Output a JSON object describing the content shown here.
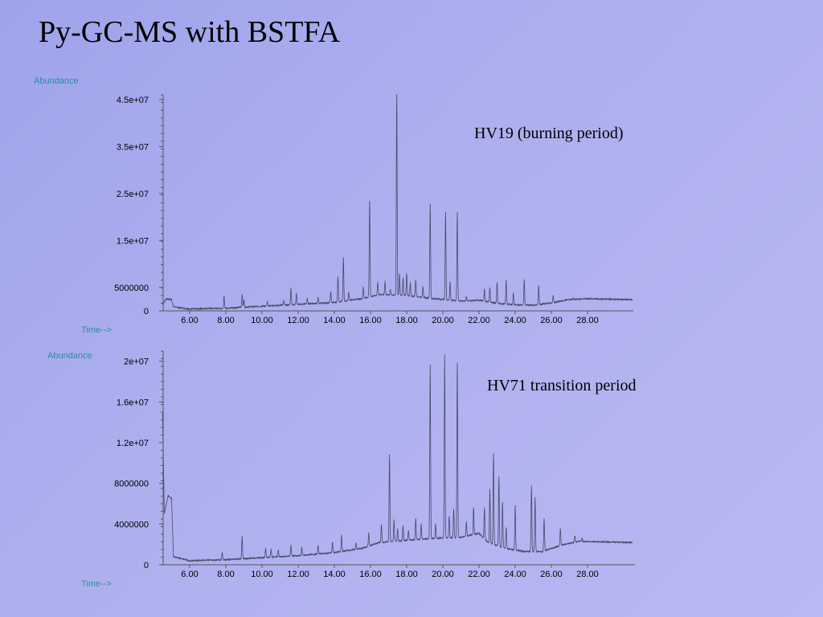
{
  "slide": {
    "title": "Py-GC-MS with BSTFA"
  },
  "chart_data": [
    {
      "type": "line",
      "annotation": "HV19 (burning period)",
      "ylabel": "Abundance",
      "xlabel": "Time-->",
      "xlim": [
        4.5,
        30.5
      ],
      "ylim": [
        0,
        46000000
      ],
      "x_ticks": [
        "6.00",
        "8.00",
        "10.00",
        "12.00",
        "14.00",
        "16.00",
        "18.00",
        "20.00",
        "22.00",
        "24.00",
        "26.00",
        "28.00"
      ],
      "y_ticks": [
        {
          "value": 0,
          "label": "0"
        },
        {
          "value": 5000000,
          "label": "5000000"
        },
        {
          "value": 15000000,
          "label": "1.5e+07"
        },
        {
          "value": 25000000,
          "label": "2.5e+07"
        },
        {
          "value": 35000000,
          "label": "3.5e+07"
        },
        {
          "value": 45000000,
          "label": "4.5e+07"
        }
      ],
      "baseline": [
        [
          4.5,
          1300000
        ],
        [
          4.7,
          2600000
        ],
        [
          5.0,
          2400000
        ],
        [
          5.1,
          900000
        ],
        [
          6.0,
          400000
        ],
        [
          8.0,
          600000
        ],
        [
          10.0,
          1000000
        ],
        [
          12.0,
          1400000
        ],
        [
          14.0,
          1800000
        ],
        [
          15.5,
          2600000
        ],
        [
          16.5,
          3500000
        ],
        [
          18.0,
          3300000
        ],
        [
          19.5,
          2600000
        ],
        [
          21.0,
          2100000
        ],
        [
          22.0,
          2300000
        ],
        [
          23.0,
          1600000
        ],
        [
          24.0,
          1300000
        ],
        [
          25.0,
          1200000
        ],
        [
          26.0,
          1700000
        ],
        [
          27.0,
          2400000
        ],
        [
          28.0,
          2600000
        ],
        [
          30.4,
          2400000
        ]
      ],
      "peaks": [
        [
          7.9,
          3000000
        ],
        [
          8.9,
          3500000
        ],
        [
          9.0,
          2300000
        ],
        [
          10.3,
          2000000
        ],
        [
          11.2,
          2200000
        ],
        [
          11.6,
          4800000
        ],
        [
          11.9,
          3700000
        ],
        [
          12.5,
          2600000
        ],
        [
          13.1,
          2800000
        ],
        [
          13.8,
          4000000
        ],
        [
          14.2,
          7200000
        ],
        [
          14.5,
          11200000
        ],
        [
          14.8,
          3900000
        ],
        [
          15.6,
          5100000
        ],
        [
          15.95,
          23300000
        ],
        [
          16.4,
          6000000
        ],
        [
          16.8,
          6300000
        ],
        [
          17.1,
          4500000
        ],
        [
          17.45,
          46000000
        ],
        [
          17.6,
          7800000
        ],
        [
          17.8,
          7000000
        ],
        [
          18.0,
          7900000
        ],
        [
          18.2,
          6000000
        ],
        [
          18.5,
          6500000
        ],
        [
          18.9,
          5100000
        ],
        [
          19.3,
          22700000
        ],
        [
          20.15,
          20900000
        ],
        [
          20.4,
          6100000
        ],
        [
          20.8,
          20900000
        ],
        [
          21.3,
          3000000
        ],
        [
          22.3,
          4600000
        ],
        [
          22.6,
          4900000
        ],
        [
          23.0,
          6000000
        ],
        [
          23.5,
          6500000
        ],
        [
          23.9,
          3700000
        ],
        [
          24.5,
          6600000
        ],
        [
          25.3,
          5300000
        ],
        [
          26.1,
          3200000
        ],
        [
          26.8,
          2400000
        ],
        [
          27.2,
          2700000
        ]
      ]
    },
    {
      "type": "line",
      "annotation": "HV71 transition period",
      "ylabel": "Abundance",
      "xlabel": "Time-->",
      "xlim": [
        4.5,
        30.5
      ],
      "ylim": [
        0,
        21000000
      ],
      "x_ticks": [
        "6.00",
        "8.00",
        "10.00",
        "12.00",
        "14.00",
        "16.00",
        "18.00",
        "20.00",
        "22.00",
        "24.00",
        "26.00",
        "28.00"
      ],
      "y_ticks": [
        {
          "value": 0,
          "label": "0"
        },
        {
          "value": 4000000,
          "label": "4000000"
        },
        {
          "value": 8000000,
          "label": "8000000"
        },
        {
          "value": 12000000,
          "label": "1.2e+07"
        },
        {
          "value": 16000000,
          "label": "1.6e+07"
        },
        {
          "value": 20000000,
          "label": "2e+07"
        }
      ],
      "baseline": [
        [
          4.5,
          15000000
        ],
        [
          4.6,
          5000000
        ],
        [
          4.8,
          6800000
        ],
        [
          5.0,
          6500000
        ],
        [
          5.1,
          800000
        ],
        [
          6.0,
          400000
        ],
        [
          8.0,
          500000
        ],
        [
          10.0,
          700000
        ],
        [
          12.0,
          900000
        ],
        [
          14.0,
          1200000
        ],
        [
          15.5,
          1600000
        ],
        [
          16.5,
          2200000
        ],
        [
          18.0,
          2400000
        ],
        [
          19.5,
          2600000
        ],
        [
          21.0,
          2700000
        ],
        [
          22.0,
          3100000
        ],
        [
          22.5,
          2200000
        ],
        [
          23.5,
          1600000
        ],
        [
          24.5,
          1300000
        ],
        [
          25.5,
          1300000
        ],
        [
          26.5,
          1900000
        ],
        [
          27.5,
          2300000
        ],
        [
          30.4,
          2200000
        ]
      ],
      "peaks": [
        [
          7.8,
          1200000
        ],
        [
          8.9,
          2800000
        ],
        [
          10.2,
          1600000
        ],
        [
          10.5,
          1500000
        ],
        [
          10.9,
          1400000
        ],
        [
          11.6,
          1900000
        ],
        [
          12.2,
          1700000
        ],
        [
          13.1,
          1900000
        ],
        [
          13.9,
          2200000
        ],
        [
          14.4,
          2900000
        ],
        [
          15.2,
          2100000
        ],
        [
          15.9,
          3100000
        ],
        [
          16.6,
          3900000
        ],
        [
          17.05,
          10800000
        ],
        [
          17.3,
          4400000
        ],
        [
          17.5,
          3500000
        ],
        [
          17.8,
          3800000
        ],
        [
          18.1,
          3300000
        ],
        [
          18.5,
          4500000
        ],
        [
          18.8,
          4000000
        ],
        [
          19.3,
          19600000
        ],
        [
          19.6,
          4000000
        ],
        [
          20.1,
          20600000
        ],
        [
          20.35,
          4700000
        ],
        [
          20.6,
          5400000
        ],
        [
          20.8,
          19800000
        ],
        [
          21.3,
          4200000
        ],
        [
          21.7,
          5600000
        ],
        [
          22.3,
          5600000
        ],
        [
          22.6,
          7400000
        ],
        [
          22.8,
          10900000
        ],
        [
          23.1,
          8600000
        ],
        [
          23.3,
          6100000
        ],
        [
          23.5,
          3600000
        ],
        [
          24.0,
          5800000
        ],
        [
          24.9,
          7700000
        ],
        [
          25.1,
          6600000
        ],
        [
          25.6,
          4500000
        ],
        [
          26.5,
          3500000
        ],
        [
          27.3,
          2800000
        ],
        [
          27.7,
          2600000
        ],
        [
          28.0,
          2300000
        ]
      ]
    }
  ]
}
